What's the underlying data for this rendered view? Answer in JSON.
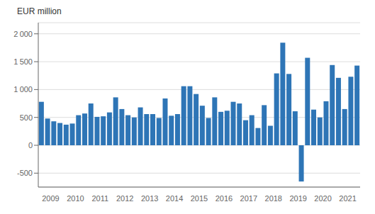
{
  "chart_data": {
    "type": "bar",
    "y_label": "EUR million",
    "categories": [
      null,
      "2009",
      null,
      null,
      null,
      "2010",
      null,
      null,
      null,
      "2011",
      null,
      null,
      null,
      "2012",
      null,
      null,
      null,
      "2013",
      null,
      null,
      null,
      "2014",
      null,
      null,
      null,
      "2015",
      null,
      null,
      null,
      "2016",
      null,
      null,
      null,
      "2017",
      null,
      null,
      null,
      "2018",
      null,
      null,
      null,
      "2019",
      null,
      null,
      null,
      "2020",
      null,
      null,
      null,
      "2021",
      null,
      null
    ],
    "values": [
      780,
      480,
      430,
      400,
      370,
      390,
      540,
      570,
      750,
      510,
      520,
      590,
      860,
      650,
      540,
      500,
      680,
      560,
      560,
      490,
      840,
      530,
      560,
      1060,
      1060,
      920,
      710,
      490,
      860,
      600,
      620,
      780,
      750,
      450,
      540,
      310,
      720,
      350,
      1290,
      1840,
      1280,
      610,
      -650,
      1570,
      640,
      500,
      790,
      1440,
      1210,
      650,
      1230,
      1430
    ],
    "color": "#2e75b6",
    "ylim": [
      -750,
      2200
    ],
    "yticks": [
      -500,
      0,
      500,
      {
        "value": 1000,
        "label": "1 000"
      },
      {
        "value": 1500,
        "label": "1 500"
      },
      {
        "value": 2000,
        "label": "2 000"
      }
    ],
    "grid": true
  }
}
